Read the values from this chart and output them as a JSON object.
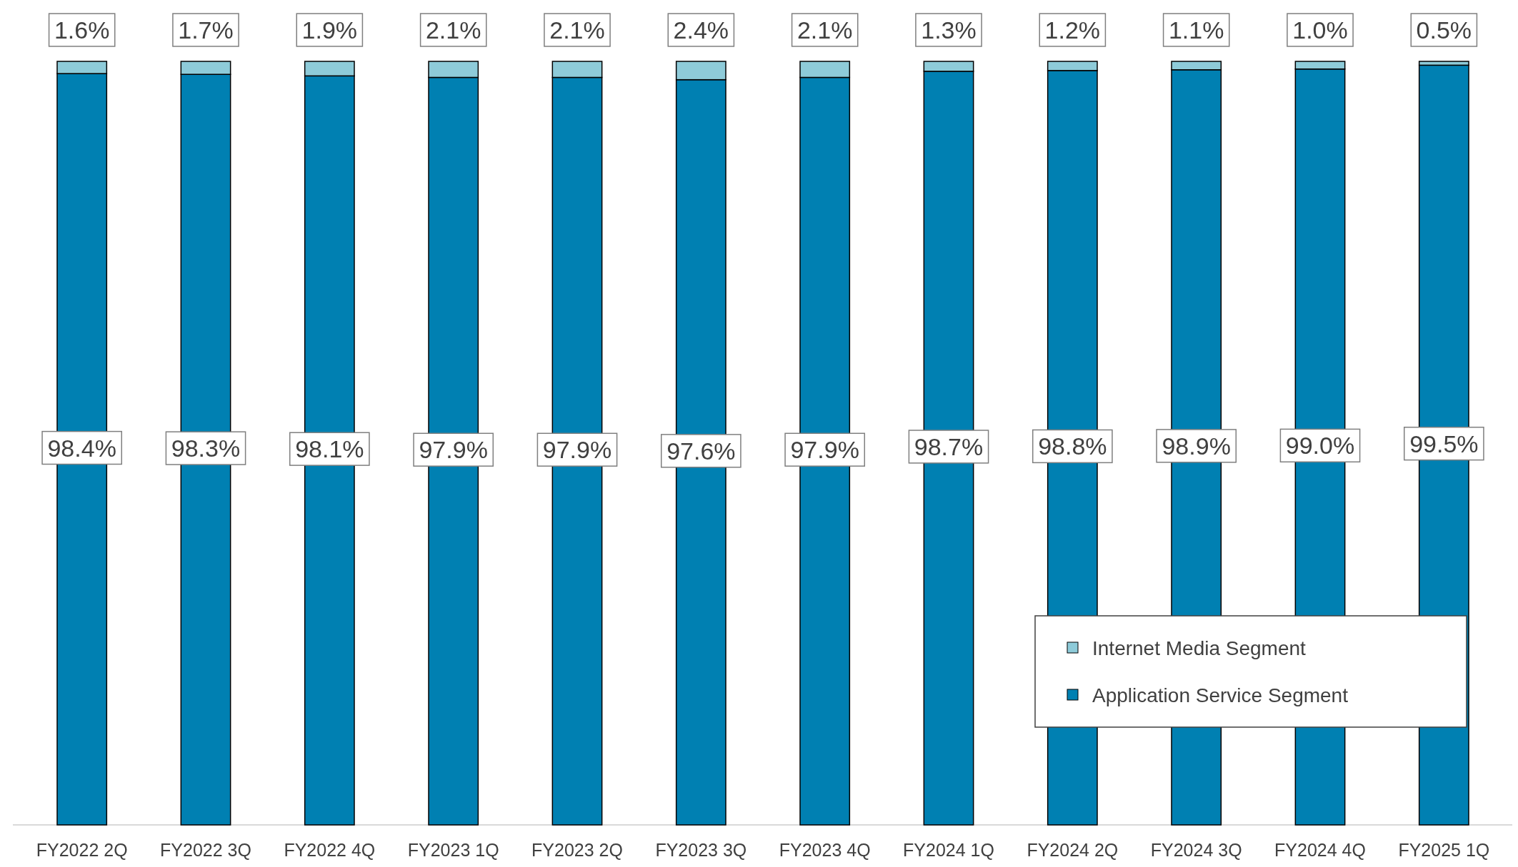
{
  "chart_data": {
    "type": "bar",
    "stacked": true,
    "categories": [
      "FY2022 2Q",
      "FY2022 3Q",
      "FY2022 4Q",
      "FY2023 1Q",
      "FY2023 2Q",
      "FY2023 3Q",
      "FY2023 4Q",
      "FY2024 1Q",
      "FY2024 2Q",
      "FY2024 3Q",
      "FY2024 4Q",
      "FY2025 1Q"
    ],
    "series": [
      {
        "name": "Application Service Segment",
        "color": "#0080b2",
        "values": [
          98.4,
          98.3,
          98.1,
          97.9,
          97.9,
          97.6,
          97.9,
          98.7,
          98.8,
          98.9,
          99.0,
          99.5
        ],
        "value_labels": [
          "98.4%",
          "98.3%",
          "98.1%",
          "97.9%",
          "97.9%",
          "97.6%",
          "97.9%",
          "98.7%",
          "98.8%",
          "98.9%",
          "99.0%",
          "99.5%"
        ]
      },
      {
        "name": "Internet Media Segment",
        "color": "#8ecbd9",
        "values": [
          1.6,
          1.7,
          1.9,
          2.1,
          2.1,
          2.4,
          2.1,
          1.3,
          1.2,
          1.1,
          1.0,
          0.5
        ],
        "value_labels": [
          "1.6%",
          "1.7%",
          "1.9%",
          "2.1%",
          "2.1%",
          "2.4%",
          "2.1%",
          "1.3%",
          "1.2%",
          "1.1%",
          "1.0%",
          "0.5%"
        ]
      }
    ],
    "legend": "bottom right"
  }
}
